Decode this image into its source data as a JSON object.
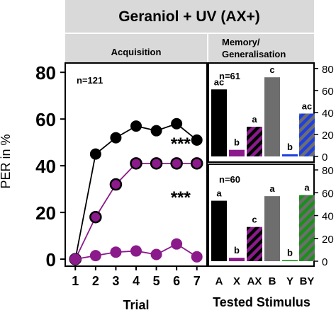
{
  "header": {
    "title": "Geraniol + UV (AX+)",
    "left_strip": "Acquisition",
    "right_strip_line1": "Memory/",
    "right_strip_line2": "Generalisation"
  },
  "colors": {
    "strip": "#d9d9d9",
    "black": "#000000",
    "purple": "#8b1a8b",
    "gray": "#6e6e6e",
    "blue": "#1f3fe0",
    "green": "#1a8f1a"
  },
  "chart_data": [
    {
      "type": "line",
      "panel": "Acquisition",
      "n_label": "n=121",
      "xlabel": "Trial",
      "ylabel": "PER in %",
      "x": [
        1,
        2,
        3,
        4,
        5,
        6,
        7
      ],
      "xlim": [
        0.5,
        7.5
      ],
      "ylim": [
        -3,
        84
      ],
      "yticks": [
        0,
        20,
        40,
        60,
        80
      ],
      "grid": false,
      "series": [
        {
          "style": "black",
          "values": [
            0,
            45,
            52,
            57,
            55,
            58,
            51
          ]
        },
        {
          "style": "purple-outlined",
          "values": [
            0,
            18,
            32,
            41,
            41,
            41,
            41
          ]
        },
        {
          "style": "purple",
          "values": [
            0,
            1.5,
            3,
            3.5,
            2,
            6.5,
            1
          ]
        }
      ],
      "annotations": [
        {
          "text": "***",
          "x": 6.2,
          "y": 47
        },
        {
          "text": "***",
          "x": 6.2,
          "y": 24
        }
      ]
    },
    {
      "type": "bar",
      "panel": "Memory/Generalisation (top)",
      "n_label": "n=61",
      "categories": [
        "A",
        "X",
        "AX",
        "B",
        "Y",
        "BY"
      ],
      "values": [
        61,
        6,
        27,
        72,
        2,
        39
      ],
      "letters": [
        "ac",
        "b",
        "a",
        "c",
        "b",
        "ac"
      ],
      "ylim": [
        0,
        85
      ],
      "yticks": [
        0,
        20,
        40,
        60,
        80
      ]
    },
    {
      "type": "bar",
      "panel": "Memory/Generalisation (bottom)",
      "n_label": "n=60",
      "categories": [
        "A",
        "X",
        "AX",
        "B",
        "Y",
        "BY"
      ],
      "values": [
        53,
        3,
        30,
        57,
        1,
        58
      ],
      "letters": [
        "a",
        "b",
        "c",
        "a",
        "b",
        "a"
      ],
      "ylim": [
        0,
        85
      ],
      "yticks": [
        0,
        20,
        40,
        60,
        80
      ],
      "xlabel": "Tested Stimulus"
    }
  ]
}
